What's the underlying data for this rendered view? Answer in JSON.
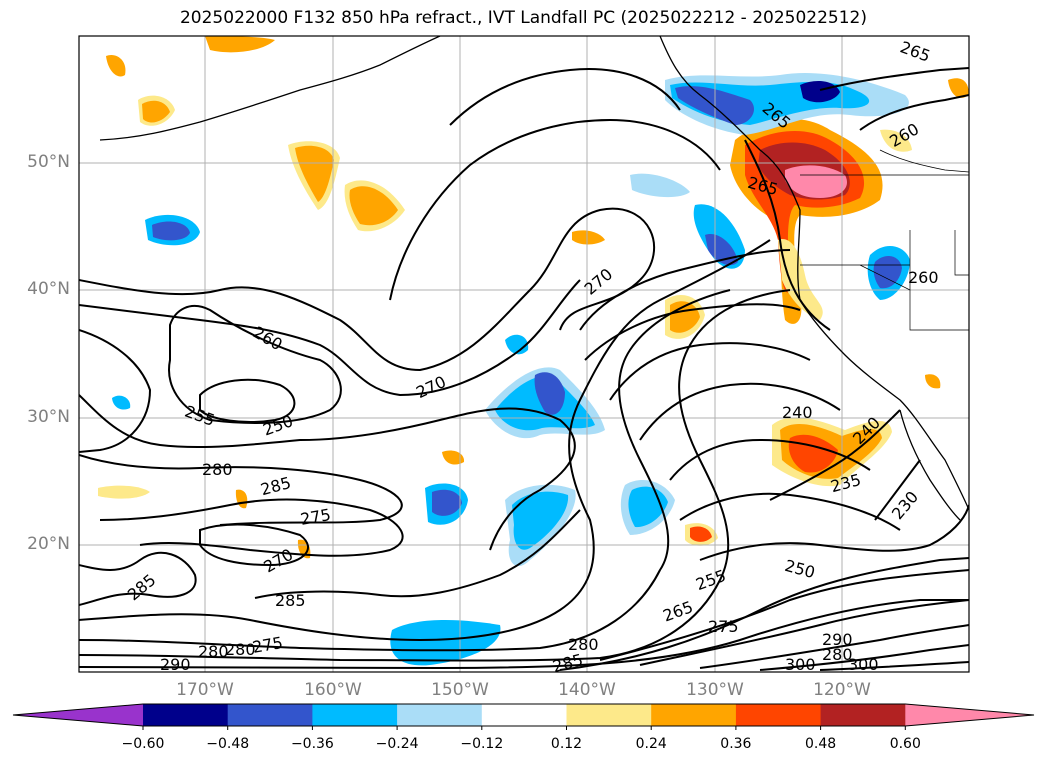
{
  "title": "2025022000 F132 850 hPa refract., IVT Landfall PC (2025022212 - 2025022512)",
  "lat_labels": [
    "50°N",
    "40°N",
    "30°N",
    "20°N"
  ],
  "lon_labels": [
    "170°W",
    "160°W",
    "150°W",
    "140°W",
    "130°W",
    "120°W"
  ],
  "colorbar": {
    "ticks": [
      "−0.60",
      "−0.48",
      "−0.36",
      "−0.24",
      "−0.12",
      "0.12",
      "0.24",
      "0.36",
      "0.48",
      "0.60"
    ],
    "colors": [
      "#9933cc",
      "#00008b",
      "#3355cc",
      "#00bbff",
      "#aaddf7",
      "#ffffff",
      "#fde98a",
      "#ffa500",
      "#ff4500",
      "#b22222",
      "#ff88aa"
    ]
  },
  "contour_labels": [
    "265",
    "260",
    "265",
    "265",
    "265",
    "260",
    "270",
    "260",
    "270",
    "255",
    "250",
    "280",
    "285",
    "275",
    "270",
    "285",
    "285",
    "280",
    "290",
    "280",
    "275",
    "285",
    "265",
    "255",
    "250",
    "275",
    "265",
    "240",
    "240",
    "235",
    "230",
    "290",
    "280",
    "300",
    "300"
  ],
  "colors": {
    "negative": [
      "#00008b",
      "#3355cc",
      "#00bbff",
      "#aaddf7"
    ],
    "positive": [
      "#fde98a",
      "#ffa500",
      "#ff4500",
      "#b22222",
      "#ff88aa"
    ]
  }
}
